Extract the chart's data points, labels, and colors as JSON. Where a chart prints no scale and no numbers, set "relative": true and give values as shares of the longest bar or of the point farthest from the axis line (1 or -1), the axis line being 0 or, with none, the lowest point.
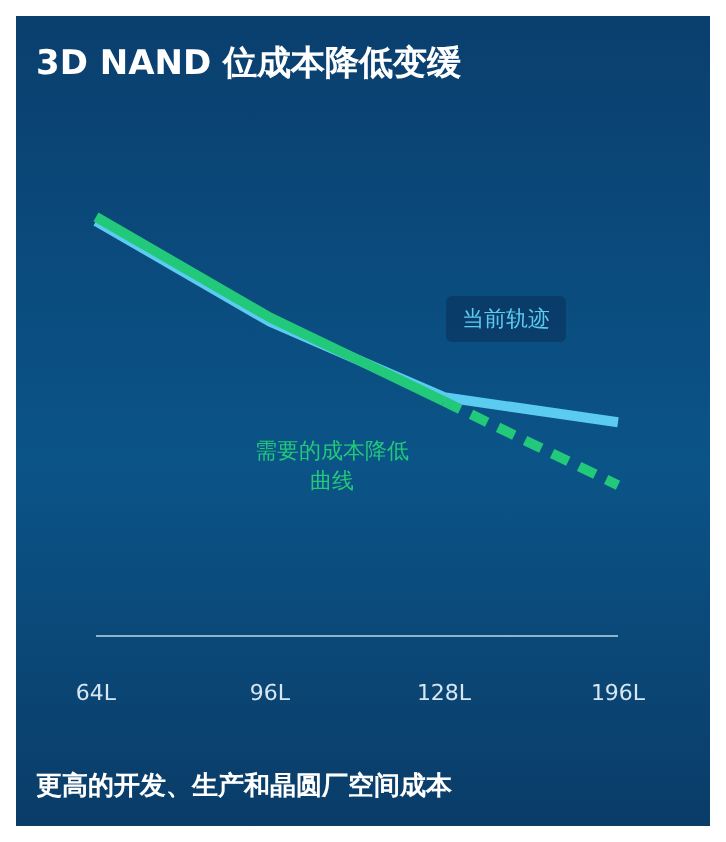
{
  "chart_data": {
    "type": "line",
    "title": "3D NAND 位成本降低变缓",
    "xlabel": "更高的开发、生产和晶圆厂空间成本",
    "categories": [
      "64L",
      "96L",
      "128L",
      "196L"
    ],
    "relative": true,
    "marker": "none",
    "series": [
      {
        "name": "当前轨迹",
        "color": "#5ccbf2",
        "values": [
          0.99,
          0.75,
          0.57,
          0.51
        ],
        "line_style": "solid"
      },
      {
        "name": "需要的成本降低曲线",
        "color": "#22c97a",
        "values": [
          1,
          0.76,
          0.56,
          null
        ],
        "line_style": "solid"
      },
      {
        "color": "#22c97a",
        "values": [
          null,
          null,
          0.56,
          0.36
        ],
        "line_style": "dashed"
      }
    ]
  }
}
